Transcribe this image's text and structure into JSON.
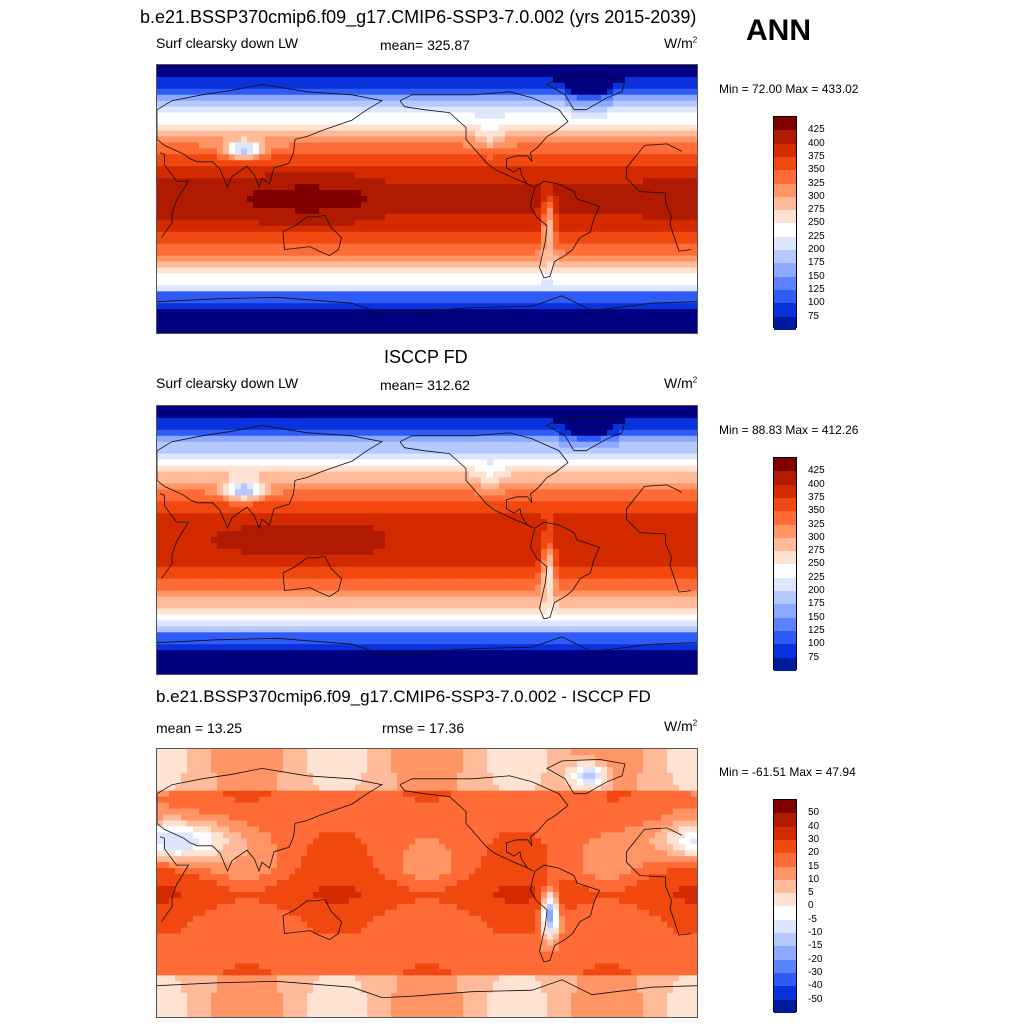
{
  "figure": {
    "title": "b.e21.BSSP370cmip6.f09_g17.CMIP6-SSP3-7.0.002 (yrs 2015-2039)",
    "season": "ANN"
  },
  "panels": [
    {
      "title": "",
      "left_label": "Surf clearsky down LW",
      "center_label": "mean= 325.87",
      "units": "W/m",
      "units_sup": "2",
      "minmax": "Min =  72.00 Max = 433.02"
    },
    {
      "title": "ISCCP FD",
      "left_label": "Surf clearsky down LW",
      "center_label": "mean= 312.62",
      "units": "W/m",
      "units_sup": "2",
      "minmax": "Min =  88.83 Max = 412.26"
    },
    {
      "title": "b.e21.BSSP370cmip6.f09_g17.CMIP6-SSP3-7.0.002 - ISCCP FD",
      "left_label": "mean =  13.25",
      "center_label": "rmse =  17.36",
      "units": "W/m",
      "units_sup": "2",
      "minmax": "Min = -61.51 Max =  47.94"
    }
  ],
  "chart_data": [
    {
      "type": "heatmap",
      "title": "b.e21.BSSP370cmip6.f09_g17.CMIP6-SSP3-7.0.002 (yrs 2015-2039)",
      "variable": "Surf clearsky down LW",
      "units": "W/m2",
      "mean": 325.87,
      "min": 72.0,
      "max": 433.02,
      "colorbar_levels": [
        425,
        400,
        375,
        350,
        325,
        300,
        275,
        250,
        225,
        200,
        175,
        150,
        125,
        100,
        75
      ],
      "colorbar_labels": [
        "425",
        "400",
        "375",
        "350",
        "325",
        "300",
        "275",
        "250",
        "225",
        "200",
        "175",
        "150",
        "125",
        "100",
        "75"
      ]
    },
    {
      "type": "heatmap",
      "title": "ISCCP FD",
      "variable": "Surf clearsky down LW",
      "units": "W/m2",
      "mean": 312.62,
      "min": 88.83,
      "max": 412.26,
      "colorbar_levels": [
        425,
        400,
        375,
        350,
        325,
        300,
        275,
        250,
        225,
        200,
        175,
        150,
        125,
        100,
        75
      ],
      "colorbar_labels": [
        "425",
        "400",
        "375",
        "350",
        "325",
        "300",
        "275",
        "250",
        "225",
        "200",
        "175",
        "150",
        "125",
        "100",
        "75"
      ]
    },
    {
      "type": "heatmap",
      "title": "b.e21.BSSP370cmip6.f09_g17.CMIP6-SSP3-7.0.002 - ISCCP FD",
      "variable": "difference",
      "units": "W/m2",
      "mean": 13.25,
      "rmse": 17.36,
      "min": -61.51,
      "max": 47.94,
      "colorbar_levels": [
        50,
        40,
        30,
        20,
        15,
        10,
        5,
        0,
        -5,
        -10,
        -15,
        -20,
        -30,
        -40,
        -50
      ],
      "colorbar_labels": [
        "50",
        "40",
        "30",
        "20",
        "15",
        "10",
        "5",
        "0",
        "-5",
        "-10",
        "-15",
        "-20",
        "-30",
        "-40",
        "-50"
      ]
    }
  ],
  "colors": {
    "palette": [
      "#800000",
      "#b01a00",
      "#d42a00",
      "#f0480f",
      "#ff6b37",
      "#ff9465",
      "#ffbb99",
      "#ffe3d2",
      "#ffffff",
      "#dce7ff",
      "#b5c9ff",
      "#8da8ff",
      "#5c82ff",
      "#2f5bf6",
      "#0a32dc",
      "#001a9e",
      "#000080"
    ]
  }
}
